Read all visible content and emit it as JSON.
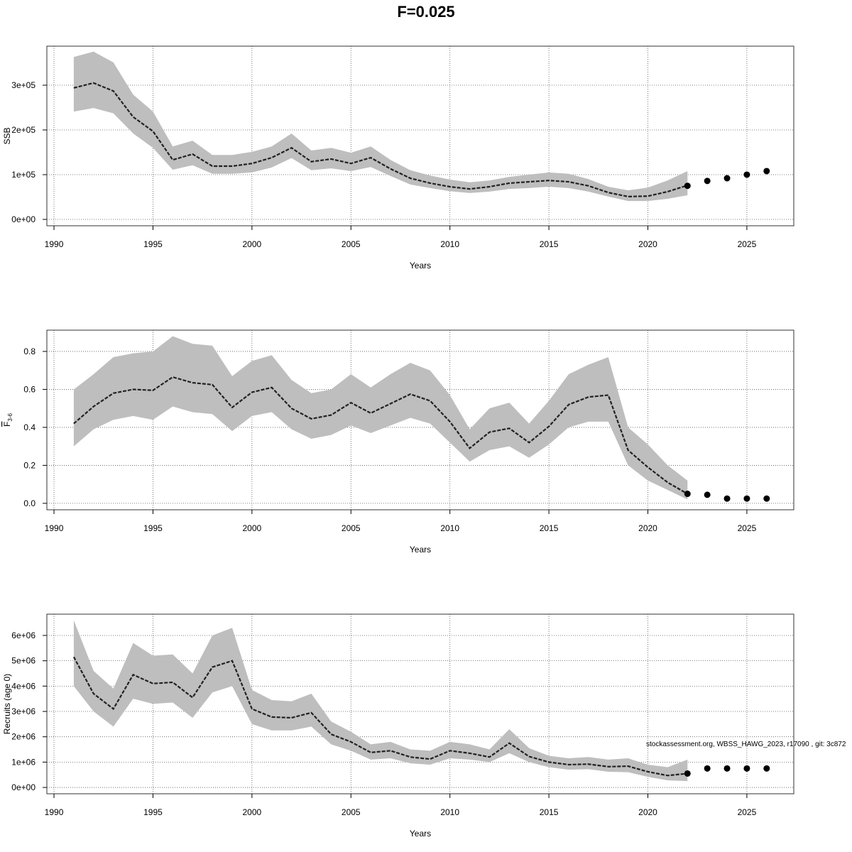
{
  "title": "F=0.025",
  "footnote": "stockassessment.org, WBSS_HAWG_2023, r17090 , git: 3c872",
  "chart_data": [
    {
      "type": "line",
      "xlabel": "Years",
      "ylabel": "SSB",
      "grid": true,
      "color": "#222222",
      "band_color": "#bebebe",
      "point_color": "#000000",
      "xlim": [
        1989.64,
        2027.37
      ],
      "xticks": [
        1990,
        1995,
        2000,
        2005,
        2010,
        2015,
        2020,
        2025
      ],
      "ylim": [
        -14300,
        387300
      ],
      "yticks": [
        {
          "value": 0,
          "label": "0e+00"
        },
        {
          "value": 100000,
          "label": "1e+05"
        },
        {
          "value": 200000,
          "label": "2e+05"
        },
        {
          "value": 300000,
          "label": "3e+05"
        }
      ],
      "x": [
        1991,
        1992,
        1993,
        1994,
        1995,
        1996,
        1997,
        1998,
        1999,
        2000,
        2001,
        2002,
        2003,
        2004,
        2005,
        2006,
        2007,
        2008,
        2009,
        2010,
        2011,
        2012,
        2013,
        2014,
        2015,
        2016,
        2017,
        2018,
        2019,
        2020,
        2021,
        2022
      ],
      "values": [
        294000,
        305000,
        287000,
        229000,
        197000,
        133000,
        146000,
        119000,
        119000,
        125000,
        138000,
        160000,
        129000,
        135000,
        125000,
        138000,
        113000,
        92000,
        81000,
        73000,
        68000,
        73000,
        81000,
        84000,
        87000,
        84000,
        75000,
        60000,
        51000,
        52000,
        62000,
        76000
      ],
      "upper": [
        363000,
        375000,
        351000,
        279000,
        241000,
        163000,
        176000,
        144000,
        144000,
        151000,
        163000,
        192000,
        154000,
        160000,
        149000,
        163000,
        133000,
        110000,
        98000,
        89000,
        83000,
        87000,
        95000,
        100000,
        105000,
        102000,
        90000,
        73000,
        65000,
        71000,
        87000,
        108000
      ],
      "lower": [
        241000,
        249000,
        237000,
        192000,
        160000,
        111000,
        121000,
        102000,
        102000,
        105000,
        116000,
        137000,
        110000,
        114000,
        108000,
        117000,
        97000,
        78000,
        70000,
        63000,
        59000,
        62000,
        68000,
        70000,
        73000,
        70000,
        62000,
        51000,
        41000,
        41000,
        46000,
        54000
      ],
      "points": {
        "x": [
          2022,
          2023,
          2024,
          2025,
          2026
        ],
        "values": [
          75000,
          86000,
          92000,
          100000,
          108000
        ]
      }
    },
    {
      "type": "line",
      "xlabel": "Years",
      "ylabel": "F",
      "ylabel_subscript": "3-6",
      "grid": true,
      "color": "#222222",
      "band_color": "#bebebe",
      "point_color": "#000000",
      "xlim": [
        1989.64,
        2027.37
      ],
      "xticks": [
        1990,
        1995,
        2000,
        2005,
        2010,
        2015,
        2020,
        2025
      ],
      "ylim": [
        -0.034,
        0.912
      ],
      "yticks": [
        {
          "value": 0,
          "label": "0.0"
        },
        0.2,
        0.4,
        0.6,
        0.8
      ],
      "x": [
        1991,
        1992,
        1993,
        1994,
        1995,
        1996,
        1997,
        1998,
        1999,
        2000,
        2001,
        2002,
        2003,
        2004,
        2005,
        2006,
        2007,
        2008,
        2009,
        2010,
        2011,
        2012,
        2013,
        2014,
        2015,
        2016,
        2017,
        2018,
        2019,
        2020,
        2021,
        2022
      ],
      "values": [
        0.42,
        0.51,
        0.58,
        0.6,
        0.595,
        0.665,
        0.635,
        0.625,
        0.505,
        0.585,
        0.61,
        0.5,
        0.445,
        0.465,
        0.53,
        0.475,
        0.525,
        0.575,
        0.54,
        0.43,
        0.29,
        0.375,
        0.395,
        0.32,
        0.405,
        0.52,
        0.56,
        0.57,
        0.28,
        0.19,
        0.11,
        0.05
      ],
      "upper": [
        0.6,
        0.68,
        0.77,
        0.79,
        0.8,
        0.88,
        0.84,
        0.83,
        0.67,
        0.75,
        0.78,
        0.65,
        0.58,
        0.6,
        0.68,
        0.61,
        0.68,
        0.74,
        0.7,
        0.57,
        0.39,
        0.5,
        0.53,
        0.42,
        0.54,
        0.68,
        0.73,
        0.77,
        0.4,
        0.31,
        0.2,
        0.12
      ],
      "lower": [
        0.3,
        0.39,
        0.44,
        0.46,
        0.44,
        0.51,
        0.48,
        0.47,
        0.38,
        0.46,
        0.48,
        0.39,
        0.34,
        0.36,
        0.41,
        0.37,
        0.41,
        0.45,
        0.42,
        0.32,
        0.22,
        0.28,
        0.3,
        0.24,
        0.31,
        0.4,
        0.43,
        0.43,
        0.2,
        0.12,
        0.07,
        0.02
      ],
      "points": {
        "x": [
          2022,
          2023,
          2024,
          2025,
          2026
        ],
        "values": [
          0.05,
          0.045,
          0.025,
          0.025,
          0.025
        ]
      }
    },
    {
      "type": "line",
      "xlabel": "Years",
      "ylabel": "Recruits (age 0)",
      "grid": true,
      "color": "#222222",
      "band_color": "#bebebe",
      "point_color": "#000000",
      "xlim": [
        1989.64,
        2027.37
      ],
      "xticks": [
        1990,
        1995,
        2000,
        2005,
        2010,
        2015,
        2020,
        2025
      ],
      "ylim": [
        -250000,
        6840000
      ],
      "yticks": [
        {
          "value": 0,
          "label": "0e+00"
        },
        {
          "value": 1000000,
          "label": "1e+06"
        },
        {
          "value": 2000000,
          "label": "2e+06"
        },
        {
          "value": 3000000,
          "label": "3e+06"
        },
        {
          "value": 4000000,
          "label": "4e+06"
        },
        {
          "value": 5000000,
          "label": "5e+06"
        },
        {
          "value": 6000000,
          "label": "6e+06"
        }
      ],
      "x": [
        1991,
        1992,
        1993,
        1994,
        1995,
        1996,
        1997,
        1998,
        1999,
        2000,
        2001,
        2002,
        2003,
        2004,
        2005,
        2006,
        2007,
        2008,
        2009,
        2010,
        2011,
        2012,
        2013,
        2014,
        2015,
        2016,
        2017,
        2018,
        2019,
        2020,
        2021,
        2022
      ],
      "values": [
        5150000,
        3700000,
        3100000,
        4450000,
        4100000,
        4150000,
        3550000,
        4750000,
        5000000,
        3100000,
        2780000,
        2750000,
        2950000,
        2100000,
        1800000,
        1380000,
        1450000,
        1200000,
        1120000,
        1450000,
        1350000,
        1200000,
        1750000,
        1220000,
        1000000,
        900000,
        920000,
        820000,
        840000,
        620000,
        470000,
        550000
      ],
      "upper": [
        6600000,
        4600000,
        3900000,
        5700000,
        5200000,
        5250000,
        4500000,
        6000000,
        6300000,
        3850000,
        3450000,
        3400000,
        3700000,
        2600000,
        2200000,
        1700000,
        1800000,
        1500000,
        1450000,
        1800000,
        1700000,
        1500000,
        2300000,
        1550000,
        1250000,
        1150000,
        1200000,
        1100000,
        1150000,
        900000,
        800000,
        1100000
      ],
      "lower": [
        4000000,
        3000000,
        2400000,
        3500000,
        3300000,
        3350000,
        2750000,
        3750000,
        4000000,
        2500000,
        2250000,
        2250000,
        2400000,
        1700000,
        1450000,
        1100000,
        1150000,
        950000,
        900000,
        1150000,
        1100000,
        1000000,
        1350000,
        1000000,
        800000,
        700000,
        720000,
        620000,
        600000,
        420000,
        280000,
        250000
      ],
      "points": {
        "x": [
          2022,
          2023,
          2024,
          2025,
          2026
        ],
        "values": [
          550000,
          750000,
          750000,
          750000,
          750000
        ]
      }
    }
  ]
}
